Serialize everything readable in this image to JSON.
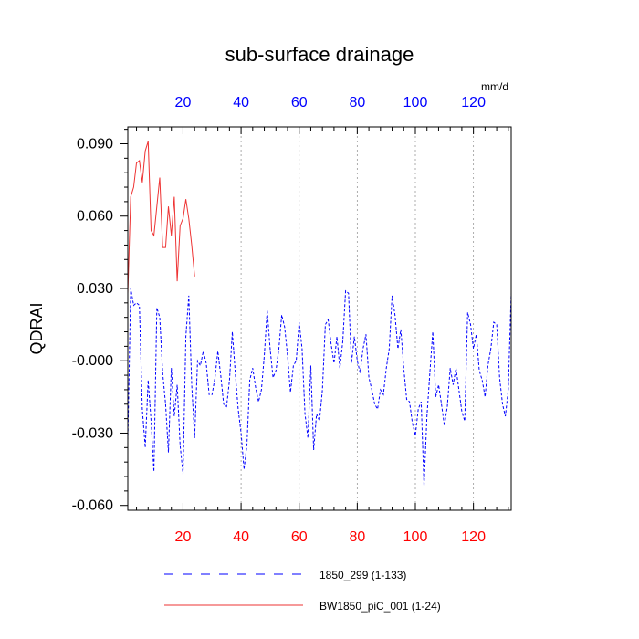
{
  "chart_data": {
    "type": "line",
    "title": "sub-surface drainage",
    "ylabel": "QDRAI",
    "top_axis_unit": "mm/d",
    "xlim": [
      1,
      133
    ],
    "ylim": [
      -0.062,
      0.097
    ],
    "x_ticks": [
      20,
      40,
      60,
      80,
      100,
      120
    ],
    "y_ticks": [
      0.09,
      0.06,
      0.03,
      0.0,
      -0.03,
      -0.06
    ],
    "y_tick_labels": [
      "0.090",
      "0.060",
      "0.030",
      "-0.000",
      "-0.030",
      "-0.060"
    ],
    "gridlines": "vertical dotted at x ticks",
    "colors": {
      "top_axis_labels": "#0000ff",
      "bottom_axis_labels": "#ff0000",
      "series_blue": "#0000ff",
      "series_red": "#ee3333"
    },
    "series": [
      {
        "name": "1850_299 (1-133)",
        "color": "#0000ff",
        "style": "dashed",
        "x_start": 1,
        "values": [
          -0.033,
          0.03,
          0.023,
          0.024,
          0.023,
          -0.02,
          -0.036,
          -0.008,
          -0.025,
          -0.046,
          0.022,
          0.018,
          -0.005,
          -0.018,
          -0.038,
          -0.003,
          -0.023,
          -0.01,
          -0.035,
          -0.047,
          0.01,
          0.027,
          -0.01,
          -0.032,
          0.0,
          -0.002,
          0.004,
          -0.001,
          -0.014,
          -0.014,
          -0.007,
          0.004,
          -0.006,
          -0.018,
          -0.019,
          -0.008,
          0.012,
          -0.005,
          -0.02,
          -0.03,
          -0.045,
          -0.035,
          -0.008,
          -0.003,
          -0.011,
          -0.017,
          -0.012,
          0.002,
          0.021,
          0.005,
          -0.007,
          -0.004,
          0.005,
          0.019,
          0.014,
          0.002,
          -0.013,
          -0.002,
          0.0,
          0.016,
          0.005,
          -0.022,
          -0.032,
          -0.002,
          -0.037,
          -0.022,
          -0.025,
          -0.012,
          0.015,
          0.017,
          0.007,
          -0.001,
          0.01,
          -0.003,
          0.008,
          0.029,
          0.028,
          -0.001,
          0.01,
          0.0,
          -0.005,
          0.005,
          0.011,
          -0.007,
          -0.012,
          -0.018,
          -0.02,
          -0.012,
          -0.014,
          -0.003,
          0.005,
          0.027,
          0.019,
          0.005,
          0.013,
          -0.003,
          -0.016,
          -0.017,
          -0.026,
          -0.031,
          -0.02,
          -0.017,
          -0.052,
          -0.023,
          -0.005,
          0.012,
          -0.015,
          -0.01,
          -0.018,
          -0.027,
          -0.019,
          -0.003,
          -0.01,
          -0.003,
          -0.012,
          -0.021,
          -0.025,
          0.02,
          0.015,
          0.005,
          0.011,
          -0.004,
          -0.008,
          -0.015,
          -0.002,
          0.005,
          0.016,
          0.015,
          -0.007,
          -0.018,
          -0.023,
          -0.012,
          0.028
        ]
      },
      {
        "name": "BW1850_piC_001 (1-24)",
        "color": "#ee3333",
        "style": "solid",
        "x_start": 1,
        "values": [
          0.028,
          0.068,
          0.072,
          0.082,
          0.083,
          0.074,
          0.087,
          0.091,
          0.054,
          0.052,
          0.064,
          0.076,
          0.047,
          0.047,
          0.064,
          0.052,
          0.068,
          0.033,
          0.056,
          0.059,
          0.067,
          0.059,
          0.048,
          0.035
        ]
      }
    ],
    "legend": {
      "placement": "below",
      "entries": [
        "1850_299 (1-133)",
        "BW1850_piC_001 (1-24)"
      ]
    }
  }
}
